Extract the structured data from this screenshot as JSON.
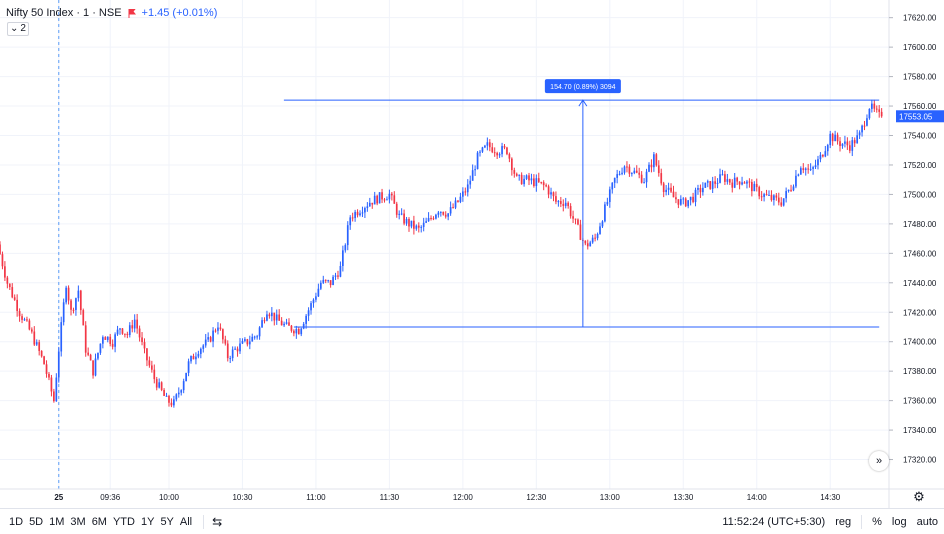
{
  "legend": {
    "symbol": "Nifty 50 Index · 1 · NSE",
    "change": "+1.45 (+0.01%)",
    "flag_color": "#f23645",
    "collapse_count": "2"
  },
  "measure_label": "154.70 (0.89%) 3094",
  "price_badge": "17553.05",
  "clock": "11:52:24 (UTC+5:30)",
  "icons": {
    "chevron": "chevron-down-icon",
    "scroll": "double-chevron-right-icon",
    "gear": "gear-icon",
    "compare": "calendar-range-icon"
  },
  "range_buttons": [
    "1D",
    "5D",
    "1M",
    "3M",
    "6M",
    "YTD",
    "1Y",
    "5Y",
    "All"
  ],
  "right_controls": {
    "session": "reg",
    "percent": "%",
    "log": "log",
    "auto": "auto"
  },
  "colors": {
    "up": "#2962ff",
    "down": "#f23645",
    "measure": "#2962ff",
    "grid": "#f0f3fa"
  },
  "chart_data": {
    "type": "candlestick",
    "symbol": "Nifty 50 Index",
    "interval": "1",
    "exchange": "NSE",
    "y_ticks": [
      17620,
      17600,
      17580,
      17560,
      17540,
      17520,
      17500,
      17480,
      17460,
      17440,
      17420,
      17400,
      17380,
      17360,
      17340,
      17320
    ],
    "y_tick_labels": [
      "17620.00",
      "17600.00",
      "17580.00",
      "17560.00",
      "17540.00",
      "17520.00",
      "17500.00",
      "17480.00",
      "17460.00",
      "17440.00",
      "17420.00",
      "17400.00",
      "17380.00",
      "17360.00",
      "17340.00",
      "17320.00"
    ],
    "ylim": [
      17300,
      17632
    ],
    "x_ticks": [
      "25",
      "09:36",
      "10:00",
      "10:30",
      "11:00",
      "11:30",
      "12:00",
      "12:30",
      "13:00",
      "13:30",
      "14:00",
      "14:30"
    ],
    "x_tick_minutes": [
      0,
      21,
      45,
      75,
      105,
      135,
      165,
      195,
      225,
      255,
      285,
      315
    ],
    "x_minutes_range": [
      -24,
      339
    ],
    "session_start_minute": 0,
    "last_price": 17553.05,
    "price_path": [
      [
        -24,
        17466
      ],
      [
        -20,
        17440
      ],
      [
        -15,
        17420
      ],
      [
        -10,
        17405
      ],
      [
        -5,
        17385
      ],
      [
        -1,
        17360
      ],
      [
        1,
        17395
      ],
      [
        4,
        17440
      ],
      [
        6,
        17420
      ],
      [
        9,
        17435
      ],
      [
        12,
        17395
      ],
      [
        15,
        17380
      ],
      [
        19,
        17405
      ],
      [
        23,
        17400
      ],
      [
        26,
        17410
      ],
      [
        29,
        17405
      ],
      [
        32,
        17415
      ],
      [
        36,
        17392
      ],
      [
        40,
        17375
      ],
      [
        45,
        17360
      ],
      [
        48,
        17358
      ],
      [
        51,
        17370
      ],
      [
        54,
        17385
      ],
      [
        58,
        17395
      ],
      [
        62,
        17400
      ],
      [
        66,
        17412
      ],
      [
        70,
        17390
      ],
      [
        74,
        17396
      ],
      [
        78,
        17400
      ],
      [
        82,
        17405
      ],
      [
        86,
        17422
      ],
      [
        90,
        17415
      ],
      [
        94,
        17410
      ],
      [
        99,
        17408
      ],
      [
        104,
        17425
      ],
      [
        108,
        17440
      ],
      [
        112,
        17440
      ],
      [
        116,
        17450
      ],
      [
        120,
        17485
      ],
      [
        124,
        17490
      ],
      [
        128,
        17495
      ],
      [
        132,
        17498
      ],
      [
        136,
        17500
      ],
      [
        140,
        17485
      ],
      [
        144,
        17480
      ],
      [
        148,
        17476
      ],
      [
        152,
        17482
      ],
      [
        156,
        17490
      ],
      [
        160,
        17487
      ],
      [
        164,
        17495
      ],
      [
        168,
        17505
      ],
      [
        172,
        17525
      ],
      [
        176,
        17533
      ],
      [
        180,
        17530
      ],
      [
        184,
        17530
      ],
      [
        188,
        17510
      ],
      [
        192,
        17510
      ],
      [
        196,
        17508
      ],
      [
        200,
        17505
      ],
      [
        204,
        17495
      ],
      [
        208,
        17495
      ],
      [
        212,
        17480
      ],
      [
        216,
        17465
      ],
      [
        220,
        17470
      ],
      [
        224,
        17490
      ],
      [
        228,
        17510
      ],
      [
        232,
        17520
      ],
      [
        236,
        17515
      ],
      [
        240,
        17510
      ],
      [
        244,
        17525
      ],
      [
        248,
        17505
      ],
      [
        252,
        17498
      ],
      [
        256,
        17494
      ],
      [
        260,
        17498
      ],
      [
        264,
        17505
      ],
      [
        268,
        17507
      ],
      [
        272,
        17512
      ],
      [
        276,
        17508
      ],
      [
        280,
        17510
      ],
      [
        284,
        17505
      ],
      [
        288,
        17500
      ],
      [
        292,
        17497
      ],
      [
        296,
        17495
      ],
      [
        300,
        17505
      ],
      [
        304,
        17520
      ],
      [
        308,
        17515
      ],
      [
        312,
        17525
      ],
      [
        316,
        17540
      ],
      [
        320,
        17535
      ],
      [
        324,
        17533
      ],
      [
        328,
        17540
      ],
      [
        332,
        17560
      ],
      [
        336,
        17553
      ]
    ],
    "measure": {
      "start_minute": 96,
      "end_minute": 335,
      "low_price": 17410,
      "high_price": 17564,
      "label_minute": 214,
      "change": "154.70",
      "change_percent": "0.89%",
      "bars": "3094"
    },
    "grid": true
  }
}
